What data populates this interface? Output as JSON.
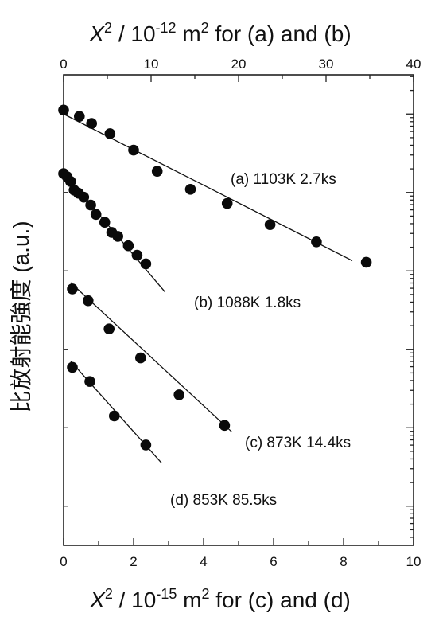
{
  "chart_data": {
    "type": "scatter",
    "top_axis": {
      "label": {
        "var": "X",
        "sup": "2",
        "mid": " / 10",
        "exp": "-12",
        "unit": " m",
        "unit_sup": "2",
        "tail": " for (a) and (b)"
      },
      "ticks": [
        "0",
        "10",
        "20",
        "30",
        "40"
      ],
      "xlim": [
        0,
        40
      ]
    },
    "bottom_axis": {
      "label": {
        "var": "X",
        "sup": "2",
        "mid": " / 10",
        "exp": "-15",
        "unit": " m",
        "unit_sup": "2",
        "tail": " for (c) and (d)"
      },
      "ticks": [
        "0",
        "2",
        "4",
        "6",
        "8",
        "10"
      ],
      "xlim": [
        0,
        10
      ]
    },
    "y_axis": {
      "label": "比放射能強度 (a.u.)",
      "scale": "log",
      "tick_labels_shown": false,
      "ylim_decades": [
        -5.5,
        0.5
      ]
    },
    "series": [
      {
        "name": "(a) 1103K 2.7ks",
        "axis": "top",
        "points": [
          [
            0.0,
            0.05
          ],
          [
            1.8,
            -0.03
          ],
          [
            3.2,
            -0.12
          ],
          [
            5.3,
            -0.25
          ],
          [
            8.0,
            -0.46
          ],
          [
            10.7,
            -0.73
          ],
          [
            14.5,
            -0.96
          ],
          [
            18.7,
            -1.14
          ],
          [
            23.6,
            -1.41
          ],
          [
            28.9,
            -1.63
          ],
          [
            34.6,
            -1.89
          ]
        ],
        "fit": [
          [
            0.0,
            0.0
          ],
          [
            33.0,
            -1.87
          ]
        ]
      },
      {
        "name": "(b) 1088K 1.8ks",
        "axis": "top",
        "points": [
          [
            0.0,
            -0.76
          ],
          [
            0.4,
            -0.8
          ],
          [
            0.8,
            -0.86
          ],
          [
            1.2,
            -0.97
          ],
          [
            1.7,
            -1.01
          ],
          [
            2.3,
            -1.06
          ],
          [
            3.1,
            -1.16
          ],
          [
            3.7,
            -1.28
          ],
          [
            4.7,
            -1.38
          ],
          [
            5.5,
            -1.51
          ],
          [
            6.2,
            -1.56
          ],
          [
            7.4,
            -1.68
          ],
          [
            8.4,
            -1.8
          ],
          [
            9.4,
            -1.91
          ]
        ],
        "fit": [
          [
            0.0,
            -0.75
          ],
          [
            11.6,
            -2.27
          ]
        ]
      },
      {
        "name": "(c) 873K 14.4ks",
        "axis": "bottom",
        "points": [
          [
            0.25,
            -2.23
          ],
          [
            0.7,
            -2.38
          ],
          [
            1.3,
            -2.74
          ],
          [
            2.2,
            -3.11
          ],
          [
            3.3,
            -3.58
          ],
          [
            4.6,
            -3.97
          ]
        ],
        "fit": [
          [
            0.2,
            -2.15
          ],
          [
            4.8,
            -4.05
          ]
        ]
      },
      {
        "name": "(d) 853K 85.5ks",
        "axis": "bottom",
        "points": [
          [
            0.25,
            -3.23
          ],
          [
            0.75,
            -3.41
          ],
          [
            1.45,
            -3.85
          ],
          [
            2.35,
            -4.22
          ]
        ],
        "fit": [
          [
            0.2,
            -3.15
          ],
          [
            2.8,
            -4.45
          ]
        ]
      }
    ]
  }
}
